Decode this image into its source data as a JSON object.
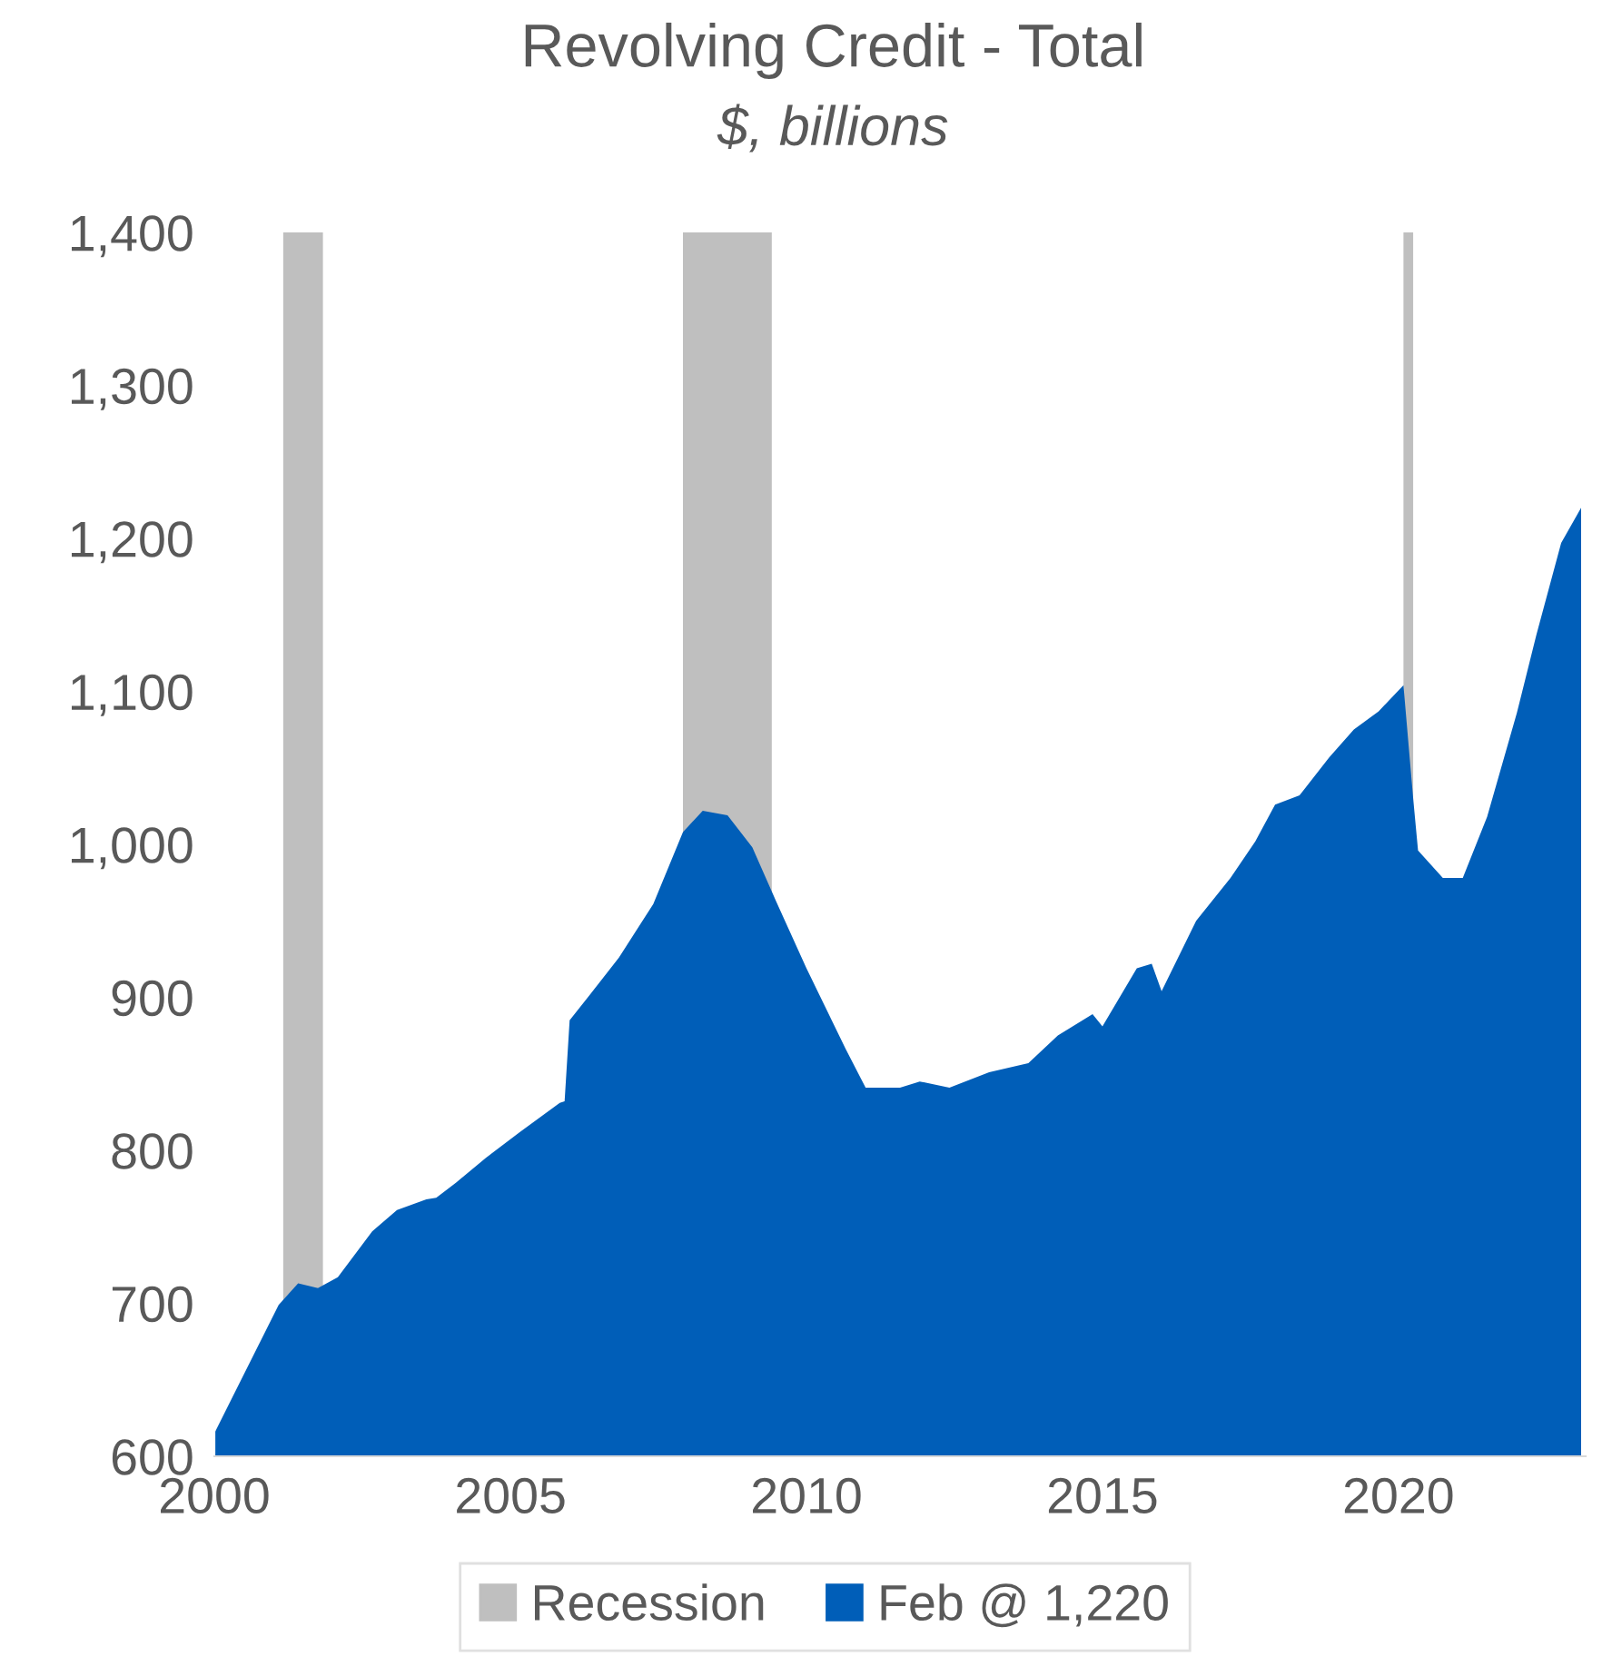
{
  "chart_data": {
    "type": "area",
    "title": "Revolving Credit - Total",
    "subtitle": "$, billions",
    "x": [
      "2000-01",
      "2001-02",
      "2001-06",
      "2001-10",
      "2002-02",
      "2002-09",
      "2003-02",
      "2003-08",
      "2003-10",
      "2004-02",
      "2004-08",
      "2005-03",
      "2005-11",
      "2005-12",
      "2006-01",
      "2006-05",
      "2006-11",
      "2007-06",
      "2007-12",
      "2008-04",
      "2008-09",
      "2009-02",
      "2009-07",
      "2010-01",
      "2010-09",
      "2011-01",
      "2011-08",
      "2011-12",
      "2012-06",
      "2013-02",
      "2013-10",
      "2014-04",
      "2014-11",
      "2015-01",
      "2015-08",
      "2015-11",
      "2016-01",
      "2016-08",
      "2017-03",
      "2017-08",
      "2017-12",
      "2018-05",
      "2018-11",
      "2019-04",
      "2019-09",
      "2020-02",
      "2020-04",
      "2020-05",
      "2020-10",
      "2021-02",
      "2021-07",
      "2022-01",
      "2022-05",
      "2022-10",
      "2023-02"
    ],
    "series": [
      {
        "name": "Feb @ 1,220",
        "color": "#005eb8",
        "values": [
          615,
          699,
          713,
          710,
          717,
          747,
          761,
          768,
          769,
          779,
          795,
          812,
          831,
          832,
          885,
          901,
          926,
          961,
          1008,
          1022,
          1019,
          998,
          962,
          919,
          866,
          841,
          841,
          845,
          841,
          851,
          857,
          875,
          889,
          881,
          919,
          922,
          904,
          950,
          978,
          1002,
          1026,
          1032,
          1057,
          1075,
          1087,
          1104,
          1030,
          996,
          978,
          978,
          1018,
          1086,
          1137,
          1197,
          1220
        ]
      }
    ],
    "bands": [
      {
        "axis": "x",
        "from": "2001-03",
        "to": "2001-11",
        "label": "Recession",
        "color": "#bfbfbf"
      },
      {
        "axis": "x",
        "from": "2007-12",
        "to": "2009-06",
        "color": "#bfbfbf"
      },
      {
        "axis": "x",
        "from": "2020-02",
        "to": "2020-04",
        "color": "#bfbfbf"
      }
    ],
    "xlim": [
      "2000-01",
      "2023-03"
    ],
    "xticks": [
      "2000",
      "2005",
      "2010",
      "2015",
      "2020"
    ],
    "ylim": [
      600,
      1400
    ],
    "yticks": [
      600,
      700,
      800,
      900,
      {
        "value": 1000,
        "label": "1,000"
      },
      {
        "value": 1100,
        "label": "1,100"
      },
      {
        "value": 1200,
        "label": "1,200"
      },
      {
        "value": 1300,
        "label": "1,300"
      },
      {
        "value": 1400,
        "label": "1,400"
      }
    ],
    "grid": false,
    "legend": "bottom"
  }
}
